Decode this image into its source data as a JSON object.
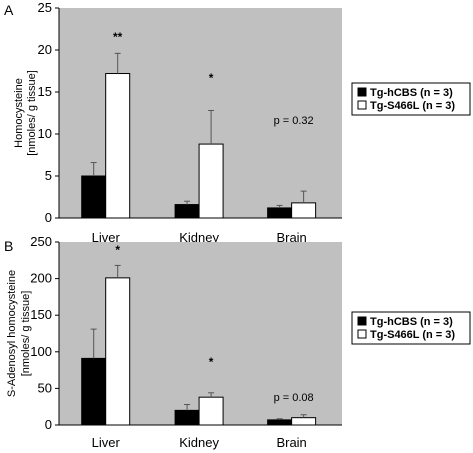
{
  "chart_data": [
    {
      "type": "bar",
      "panel_label": "A",
      "ylabel": [
        "Homocysteine",
        "[nmoles/ g tissue]"
      ],
      "ylim": [
        0,
        25
      ],
      "yticks": [
        0,
        5,
        10,
        15,
        20,
        25
      ],
      "categories": [
        "Liver",
        "Kidney",
        "Brain"
      ],
      "series": [
        {
          "name": "Tg-hCBS (n = 3)",
          "color": "#000000",
          "values": [
            5.0,
            1.6,
            1.2
          ],
          "errors": [
            1.6,
            0.4,
            0.3
          ]
        },
        {
          "name": "Tg-S466L (n = 3)",
          "color": "#ffffff",
          "values": [
            17.2,
            8.8,
            1.8
          ],
          "errors": [
            2.4,
            4.0,
            1.4
          ]
        }
      ],
      "annotations": [
        "**",
        "*",
        "p = 0.32"
      ],
      "grid": false,
      "legend": "right"
    },
    {
      "type": "bar",
      "panel_label": "B",
      "ylabel": [
        "S-Adenosyl homocysteine",
        "[nmoles/ g tissue]"
      ],
      "ylim": [
        0,
        250
      ],
      "yticks": [
        0,
        50,
        100,
        150,
        200,
        250
      ],
      "categories": [
        "Liver",
        "Kidney",
        "Brain"
      ],
      "series": [
        {
          "name": "Tg-hCBS (n = 3)",
          "color": "#000000",
          "values": [
            91,
            20,
            7
          ],
          "errors": [
            40,
            8,
            1.5
          ]
        },
        {
          "name": "Tg-S466L (n = 3)",
          "color": "#ffffff",
          "values": [
            201,
            38,
            10
          ],
          "errors": [
            17,
            6,
            4
          ]
        }
      ],
      "annotations": [
        "*",
        "*",
        "p = 0.08"
      ],
      "grid": false,
      "legend": "right"
    }
  ]
}
